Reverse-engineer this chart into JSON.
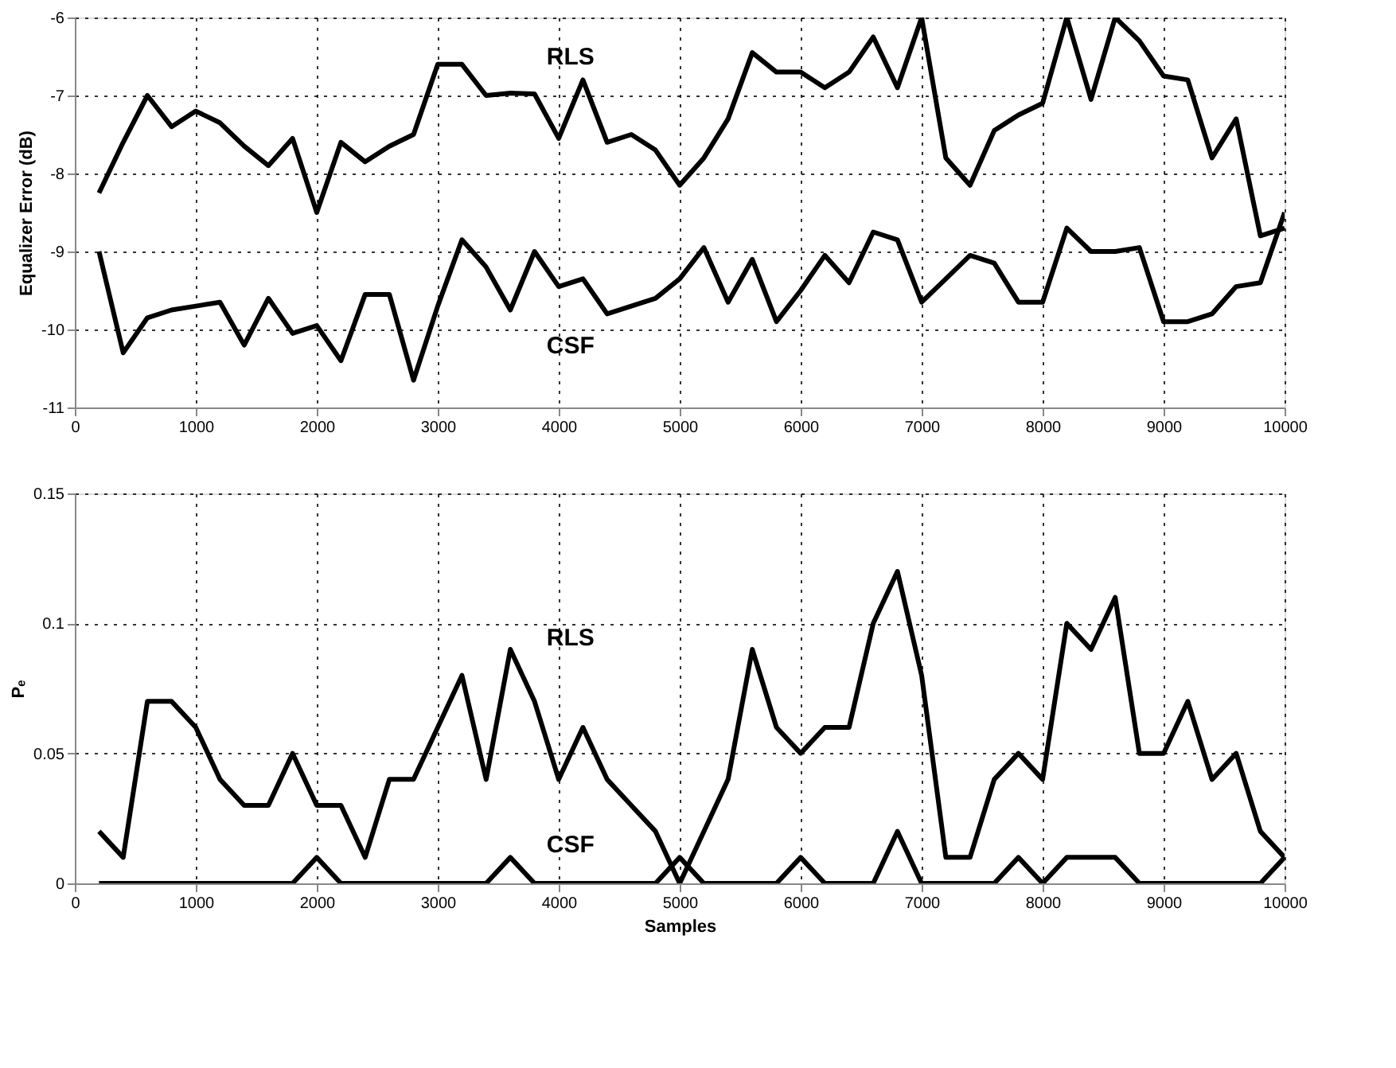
{
  "chart_data": [
    {
      "type": "line",
      "ylabel": "Equalizer Error (dB)",
      "x": [
        200,
        400,
        600,
        800,
        1000,
        1200,
        1400,
        1600,
        1800,
        2000,
        2200,
        2400,
        2600,
        2800,
        3000,
        3200,
        3400,
        3600,
        3800,
        4000,
        4200,
        4400,
        4600,
        4800,
        5000,
        5200,
        5400,
        5600,
        5800,
        6000,
        6200,
        6400,
        6600,
        6800,
        7000,
        7200,
        7400,
        7600,
        7800,
        8000,
        8200,
        8400,
        8600,
        8800,
        9000,
        9200,
        9400,
        9600,
        9800,
        10000
      ],
      "series": [
        {
          "name": "RLS",
          "color": "#000000",
          "values": [
            -8.25,
            -7.6,
            -7.0,
            -7.4,
            -7.2,
            -7.35,
            -7.65,
            -7.9,
            -7.55,
            -8.5,
            -7.6,
            -7.85,
            -7.65,
            -7.5,
            -6.6,
            -6.6,
            -7.0,
            -6.97,
            -6.98,
            -7.55,
            -6.8,
            -7.6,
            -7.5,
            -7.7,
            -8.15,
            -7.8,
            -7.3,
            -6.45,
            -6.7,
            -6.7,
            -6.9,
            -6.7,
            -6.25,
            -6.9,
            -6.0,
            -7.8,
            -8.15,
            -7.45,
            -7.25,
            -7.1,
            -6.0,
            -7.05,
            -6.0,
            -6.3,
            -6.75,
            -6.8,
            -7.8,
            -7.3,
            -8.8,
            -8.7
          ]
        },
        {
          "name": "CSF",
          "color": "#000000",
          "values": [
            -9.0,
            -10.3,
            -9.85,
            -9.75,
            -9.7,
            -9.65,
            -10.2,
            -9.6,
            -10.05,
            -9.95,
            -10.4,
            -9.55,
            -9.55,
            -10.65,
            -9.7,
            -8.85,
            -9.2,
            -9.75,
            -9.0,
            -9.45,
            -9.35,
            -9.8,
            -9.7,
            -9.6,
            -9.35,
            -8.95,
            -9.65,
            -9.1,
            -9.9,
            -9.5,
            -9.05,
            -9.4,
            -8.75,
            -8.85,
            -9.65,
            -9.35,
            -9.05,
            -9.15,
            -9.65,
            -9.65,
            -8.7,
            -9.0,
            -9.0,
            -8.95,
            -9.9,
            -9.9,
            -9.8,
            -9.45,
            -9.4,
            -8.5
          ]
        }
      ],
      "xlim": [
        0,
        10000
      ],
      "xticks": [
        0,
        1000,
        2000,
        3000,
        4000,
        5000,
        6000,
        7000,
        8000,
        9000,
        10000
      ],
      "ylim": [
        -11,
        -6
      ],
      "yticks": [
        -11,
        -10,
        -9,
        -8,
        -7,
        -6
      ],
      "grid": true,
      "line_style": "solid",
      "marker": "none"
    },
    {
      "type": "line",
      "xlabel": "Samples",
      "ylabel": "Pₑ",
      "x": [
        200,
        400,
        600,
        800,
        1000,
        1200,
        1400,
        1600,
        1800,
        2000,
        2200,
        2400,
        2600,
        2800,
        3000,
        3200,
        3400,
        3600,
        3800,
        4000,
        4200,
        4400,
        4600,
        4800,
        5000,
        5200,
        5400,
        5600,
        5800,
        6000,
        6200,
        6400,
        6600,
        6800,
        7000,
        7200,
        7400,
        7600,
        7800,
        8000,
        8200,
        8400,
        8600,
        8800,
        9000,
        9200,
        9400,
        9600,
        9800,
        10000
      ],
      "series": [
        {
          "name": "RLS",
          "color": "#000000",
          "values": [
            0.02,
            0.01,
            0.07,
            0.07,
            0.06,
            0.04,
            0.03,
            0.03,
            0.05,
            0.03,
            0.03,
            0.01,
            0.04,
            0.04,
            0.06,
            0.08,
            0.04,
            0.09,
            0.07,
            0.04,
            0.06,
            0.04,
            0.03,
            0.02,
            0,
            0.02,
            0.04,
            0.09,
            0.06,
            0.05,
            0.06,
            0.06,
            0.1,
            0.12,
            0.08,
            0.01,
            0.01,
            0.04,
            0.05,
            0.04,
            0.1,
            0.09,
            0.11,
            0.05,
            0.05,
            0.07,
            0.04,
            0.05,
            0.02,
            0.01
          ]
        },
        {
          "name": "CSF",
          "color": "#000000",
          "values": [
            0,
            0,
            0,
            0,
            0,
            0,
            0,
            0,
            0,
            0.01,
            0,
            0,
            0,
            0,
            0,
            0,
            0,
            0.01,
            0,
            0,
            0,
            0,
            0,
            0,
            0.01,
            0,
            0,
            0,
            0,
            0.01,
            0,
            0,
            0,
            0.02,
            0,
            0,
            0,
            0,
            0.01,
            0,
            0.01,
            0.01,
            0.01,
            0,
            0,
            0,
            0,
            0,
            0,
            0.01
          ]
        }
      ],
      "xlim": [
        0,
        10000
      ],
      "xticks": [
        0,
        1000,
        2000,
        3000,
        4000,
        5000,
        6000,
        7000,
        8000,
        9000,
        10000
      ],
      "ylim": [
        0,
        0.15
      ],
      "yticks": [
        0,
        0.05,
        0.1,
        0.15
      ],
      "grid": true,
      "line_style": "solid",
      "marker": "none"
    }
  ]
}
